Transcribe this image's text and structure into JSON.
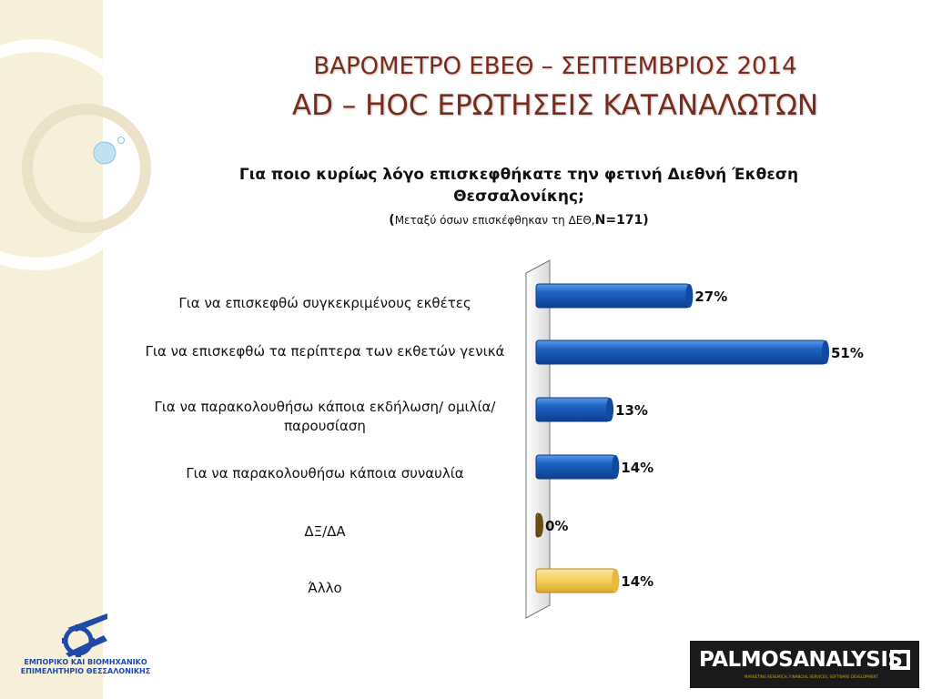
{
  "header": {
    "title_line1": "ΒΑΡΟΜΕΤΡΟ ΕΒΕΘ – ΣΕΠΤΕΜΒΡΙΟΣ 2014",
    "title_line2": "AD – HOC ΕΡΩΤΗΣΕΙΣ ΚΑΤΑΝΑΛΩΤΩΝ"
  },
  "question": {
    "text": "Για ποιο κυρίως λόγο επισκεφθήκατε την φετινή Διεθνή Έκθεση Θεσσαλονίκης;",
    "sub_open": "(",
    "sub_small": "Μεταξύ όσων επισκέφθηκαν τη ΔΕΘ,",
    "sub_n": "N=171)"
  },
  "chart_data": {
    "type": "bar",
    "orientation": "horizontal",
    "categories": [
      "Για να επισκεφθώ συγκεκριμένους εκθέτες",
      "Για να επισκεφθώ τα περίπτερα των εκθετών γενικά",
      "Για να παρακολουθήσω κάποια εκδήλωση/ ομιλία/ παρουσίαση",
      "Για να παρακολουθήσω κάποια συναυλία",
      "ΔΞ/ΔΑ",
      "Άλλο"
    ],
    "values": [
      27,
      51,
      13,
      14,
      0,
      14
    ],
    "value_labels": [
      "27%",
      "51%",
      "13%",
      "14%",
      "0%",
      "14%"
    ],
    "bar_colors": [
      "#1a5bb5",
      "#1a5bb5",
      "#1a5bb5",
      "#1a5bb5",
      "#7a5a10",
      "#f5d060"
    ],
    "xlim": [
      0,
      51
    ],
    "grid": false,
    "legend": "none"
  },
  "logos": {
    "left_line1": "ΕΜΠΟΡΙΚΟ ΚΑΙ ΒΙΟΜΗΧΑΝΙΚΟ",
    "left_line2": "ΕΠΙΜΕΛΗΤΗΡΙΟ ΘΕΣΣΑΛΟΝΙΚΗΣ",
    "right_name": "PALMOSANALYSIS",
    "right_tag": "MARKETING RESEARCH, FINANCIAL SERVICES, SOFTWARE DEVELOPMENT"
  }
}
